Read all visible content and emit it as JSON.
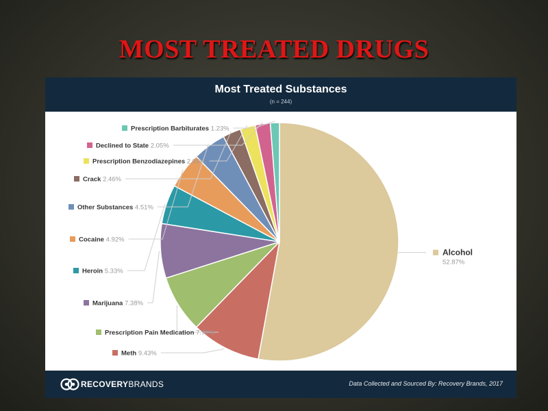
{
  "slide": {
    "title": "MOST TREATED DRUGS"
  },
  "chart_data": {
    "type": "pie",
    "title": "Most Treated Substances",
    "subtitle": "(n = 244)",
    "slices": [
      {
        "label": "Alcohol",
        "value": 52.87,
        "display": "52.87%",
        "color": "#dcc99c"
      },
      {
        "label": "Meth",
        "value": 9.43,
        "display": "9.43%",
        "color": "#c96e63"
      },
      {
        "label": "Prescription Pain Medication",
        "value": 7.79,
        "display": "7.79%",
        "color": "#9fbe6e"
      },
      {
        "label": "Marijuana",
        "value": 7.38,
        "display": "7.38%",
        "color": "#8c749f"
      },
      {
        "label": "Heroin",
        "value": 5.33,
        "display": "5.33%",
        "color": "#2b9aa6"
      },
      {
        "label": "Cocaine",
        "value": 4.92,
        "display": "4.92%",
        "color": "#e89c5c"
      },
      {
        "label": "Other Substances",
        "value": 4.51,
        "display": "4.51%",
        "color": "#6f8fb9"
      },
      {
        "label": "Crack",
        "value": 2.46,
        "display": "2.46%",
        "color": "#8b6d63"
      },
      {
        "label": "Prescription Benzodiazepines",
        "value": 2.05,
        "display": "2.05%",
        "color": "#ece25e"
      },
      {
        "label": "Declined to State",
        "value": 2.05,
        "display": "2.05%",
        "color": "#d2638f"
      },
      {
        "label": "Prescription Barbiturates",
        "value": 1.23,
        "display": "1.23%",
        "color": "#6cc7b4"
      }
    ]
  },
  "footer": {
    "brand_part1": "RECOVERY",
    "brand_part2": "BRANDS",
    "source": "Data Collected and Sourced By: Recovery Brands, 2017"
  }
}
